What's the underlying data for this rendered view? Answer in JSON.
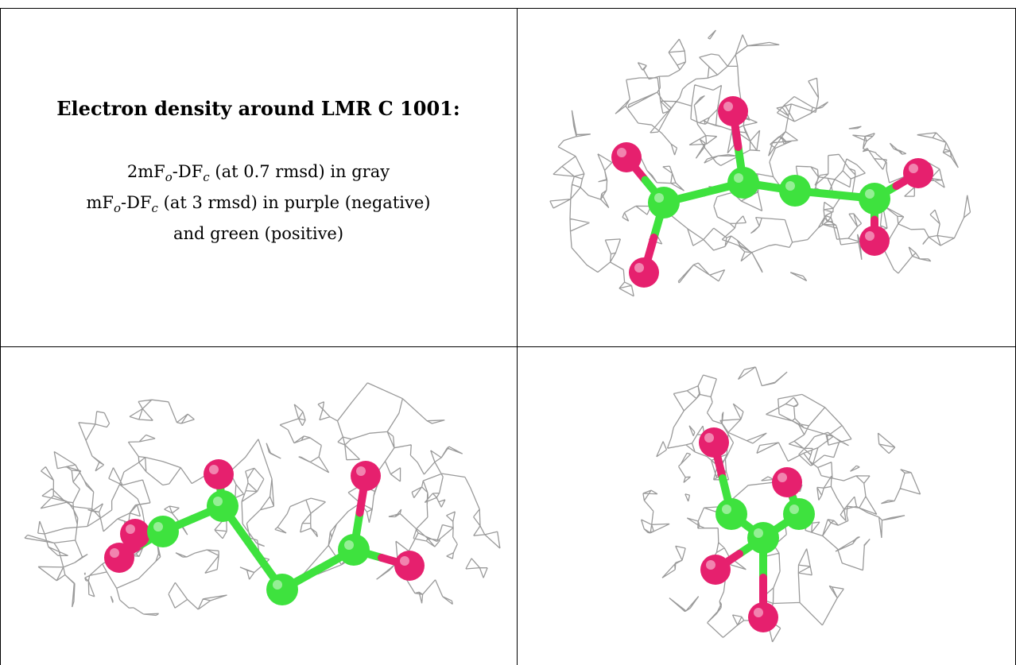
{
  "title": "Electron density around LMR C 1001:",
  "legend": {
    "line1": {
      "a": "2mF",
      "a_sub": "o",
      "b": "-DF",
      "b_sub": "c",
      "rest": " (at 0.7 rmsd) in gray"
    },
    "line2": {
      "a": "mF",
      "a_sub": "o",
      "b": "-DF",
      "b_sub": "c",
      "rest": " (at 3 rmsd) in purple (negative)"
    },
    "line3": "and green (positive)"
  },
  "colors": {
    "mesh": "#9a9a9a",
    "carbon": "#3ee23e",
    "oxygen": "#e6206e",
    "border": "#000000"
  },
  "views": [
    {
      "name": "view-top-right",
      "atoms": "carbon and oxygen ball-and-stick model"
    },
    {
      "name": "view-bottom-left",
      "atoms": "carbon and oxygen ball-and-stick model"
    },
    {
      "name": "view-bottom-right",
      "atoms": "carbon and oxygen ball-and-stick model"
    }
  ]
}
